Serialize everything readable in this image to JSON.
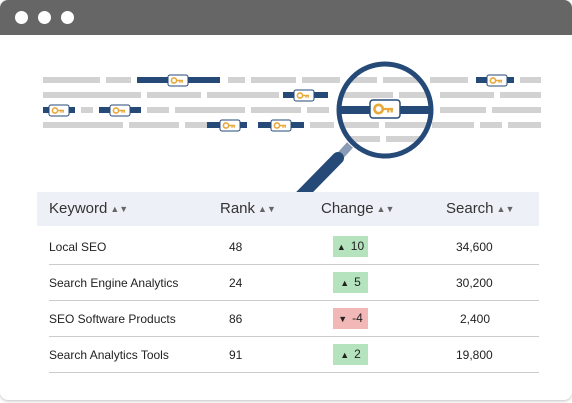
{
  "window": {
    "controls": [
      "close",
      "minimize",
      "maximize"
    ]
  },
  "illustration": {
    "icons": [
      "key-icon",
      "magnifier-icon"
    ],
    "colors": {
      "bar": "#d2d2d2",
      "highlight": "#254a78",
      "key": "#e8a93a"
    }
  },
  "table": {
    "headers": {
      "keyword": "Keyword",
      "rank": "Rank",
      "change": "Change",
      "search": "Search"
    },
    "rows": [
      {
        "keyword": "Local SEO",
        "rank": "48",
        "direction": "up",
        "change": "10",
        "search": "34,600"
      },
      {
        "keyword": "Search Engine Analytics",
        "rank": "24",
        "direction": "up",
        "change": "5",
        "search": "30,200"
      },
      {
        "keyword": "SEO Software Products",
        "rank": "86",
        "direction": "down",
        "change": "-4",
        "search": "2,400"
      },
      {
        "keyword": "Search Analytics Tools",
        "rank": "91",
        "direction": "up",
        "change": "2",
        "search": "19,800"
      }
    ]
  },
  "colors": {
    "titlebar": "#666666",
    "header_bg": "#eef0f8",
    "change_up": "#b4e3be",
    "change_down": "#f2b7b7"
  }
}
